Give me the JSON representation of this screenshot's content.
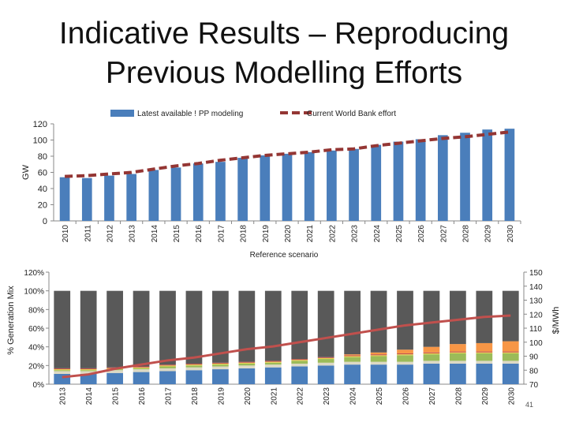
{
  "slide": {
    "title_line1": "Indicative Results – Reproducing",
    "title_line2": "Previous Modelling Efforts",
    "page_number": "41"
  },
  "chart_data": [
    {
      "type": "bar",
      "title": "",
      "ylabel": "GW",
      "xlabel": "Reference scenario",
      "ylim": [
        0,
        120
      ],
      "yticks": [
        0,
        20,
        40,
        60,
        80,
        100,
        120
      ],
      "grid": false,
      "legend_position": "top",
      "categories": [
        "2010",
        "2011",
        "2012",
        "2013",
        "2014",
        "2015",
        "2016",
        "2017",
        "2018",
        "2019",
        "2020",
        "2021",
        "2022",
        "2023",
        "2024",
        "2025",
        "2026",
        "2027",
        "2028",
        "2029",
        "2030"
      ],
      "series": [
        {
          "name": "Latest available ! PP modeling",
          "kind": "bar",
          "color": "#4a7ebb",
          "values": [
            54,
            53,
            56,
            58,
            63,
            66,
            71,
            73,
            78,
            81,
            83,
            85,
            87,
            89,
            94,
            98,
            101,
            106,
            109,
            113,
            114
          ]
        },
        {
          "name": "Current World Bank effort",
          "kind": "line",
          "style": "dashed",
          "color": "#943634",
          "values": [
            55,
            56,
            58,
            60,
            64,
            68,
            71,
            75,
            78,
            81,
            83,
            85,
            88,
            89,
            93,
            96,
            99,
            102,
            104,
            107,
            110
          ]
        }
      ]
    },
    {
      "type": "bar",
      "stacked": true,
      "title": "",
      "ylabel": "% Generation Mix",
      "y2label": "$/MWh",
      "ylim": [
        0,
        120
      ],
      "yticks": [
        "0%",
        "20%",
        "40%",
        "60%",
        "80%",
        "100%",
        "120%"
      ],
      "y2lim": [
        70,
        150
      ],
      "y2ticks": [
        70,
        80,
        90,
        100,
        110,
        120,
        130,
        140,
        150
      ],
      "grid": false,
      "categories": [
        "2013",
        "2014",
        "2015",
        "2016",
        "2017",
        "2018",
        "2019",
        "2020",
        "2021",
        "2022",
        "2023",
        "2024",
        "2025",
        "2026",
        "2027",
        "2028",
        "2029",
        "2030"
      ],
      "series": [
        {
          "name": "",
          "color": "#4a7ebb",
          "values": [
            11,
            11,
            12,
            13,
            14,
            15,
            16,
            17,
            18,
            19,
            20,
            21,
            21,
            21,
            22,
            22,
            22,
            22
          ]
        },
        {
          "name": "",
          "color": "#ddd9c4",
          "values": [
            3,
            3,
            3,
            3,
            3,
            3,
            3,
            3,
            3,
            3,
            3,
            3,
            3,
            3,
            3,
            3,
            3,
            3
          ]
        },
        {
          "name": "",
          "color": "#9bbb59",
          "values": [
            1,
            1,
            1,
            1,
            2,
            2,
            2,
            2,
            2,
            3,
            4,
            5,
            6,
            7,
            7,
            8,
            8,
            8
          ]
        },
        {
          "name": "",
          "color": "#e8d44d",
          "values": [
            1,
            1,
            1,
            1,
            1,
            1,
            1,
            1,
            1,
            1,
            1,
            1,
            1,
            1,
            1,
            1,
            1,
            1
          ]
        },
        {
          "name": "",
          "color": "#c0504d",
          "values": [
            1,
            1,
            1,
            1,
            1,
            1,
            1,
            1,
            1,
            1,
            1,
            1,
            1,
            1,
            1,
            1,
            1,
            1
          ]
        },
        {
          "name": "",
          "color": "#f79646",
          "values": [
            0,
            0,
            0,
            0,
            0,
            0,
            0,
            0,
            0,
            0,
            0,
            1,
            2,
            4,
            6,
            8,
            9,
            11
          ]
        },
        {
          "name": "",
          "color": "#595959",
          "values": [
            83,
            83,
            82,
            81,
            79,
            78,
            77,
            76,
            75,
            73,
            71,
            68,
            66,
            63,
            60,
            57,
            56,
            54
          ]
        },
        {
          "name": "",
          "kind": "line",
          "axis": "y2",
          "color": "#c0504d",
          "values": [
            75,
            77,
            81,
            84,
            87,
            89,
            92,
            95,
            97,
            100,
            103,
            106,
            109,
            112,
            114,
            116,
            118,
            119
          ]
        }
      ]
    }
  ]
}
